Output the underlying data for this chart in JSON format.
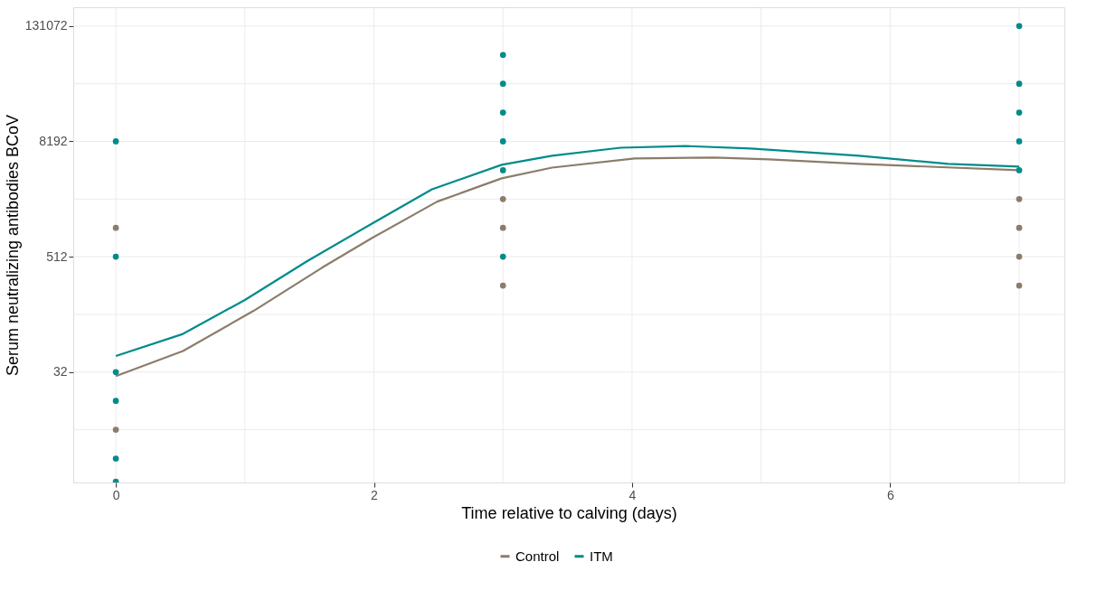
{
  "chart_data": {
    "type": "line",
    "xlabel": "Time relative to calving (days)",
    "ylabel": "Serum neutralizing antibodies BCoV",
    "log": true,
    "grid": true,
    "legend": "bottom",
    "marker": "none",
    "line_style": "solid",
    "xlim": [
      -0.33,
      7.35
    ],
    "xticks": [
      0,
      {
        "value": 1,
        "label": null
      },
      2,
      {
        "value": 3,
        "label": null
      },
      4,
      {
        "value": 5,
        "label": null
      },
      6,
      {
        "value": 7,
        "label": null
      }
    ],
    "ylim": [
      2.25,
      206000
    ],
    "yticks": [
      {
        "value": 8,
        "label": null
      },
      32,
      {
        "value": 128,
        "label": null
      },
      512,
      {
        "value": 2048,
        "label": null
      },
      8192,
      {
        "value": 32768,
        "label": null
      },
      131072
    ],
    "series": [
      {
        "name": "Control",
        "color": "#8b7d6b",
        "x": [
          0,
          0.52,
          1.07,
          1.6,
          1.99,
          2.49,
          2.99,
          3.38,
          4.02,
          4.64,
          5.06,
          5.76,
          7.0
        ],
        "values": [
          29,
          53,
          140,
          395,
          809,
          1925,
          3370,
          4360,
          5440,
          5560,
          5310,
          4770,
          4096
        ]
      },
      {
        "name": "ITM",
        "color": "#008b8b",
        "x": [
          0,
          0.52,
          1.0,
          1.48,
          2.0,
          2.45,
          2.99,
          3.38,
          3.91,
          4.41,
          4.92,
          5.76,
          6.45,
          7.0
        ],
        "values": [
          47,
          80,
          181,
          458,
          1167,
          2590,
          4670,
          5790,
          7030,
          7330,
          6890,
          5790,
          4770,
          4470
        ]
      },
      {
        "type": "scatter",
        "marker": "circle",
        "color": "#8b7d6b",
        "x": [
          0,
          0,
          3,
          3,
          3,
          7,
          7,
          7,
          7
        ],
        "values": [
          1024,
          8,
          2048,
          1024,
          256,
          2048,
          1024,
          512,
          256
        ]
      },
      {
        "type": "scatter",
        "marker": "circle",
        "color": "#008b8b",
        "x": [
          0,
          0,
          0,
          0,
          0,
          0,
          3,
          3,
          3,
          3,
          3,
          3,
          7,
          7,
          7,
          7,
          7
        ],
        "values": [
          8192,
          512,
          32,
          16,
          4,
          2.3,
          65536,
          32768,
          16384,
          8192,
          4096,
          512,
          131072,
          32768,
          16384,
          8192,
          4096
        ]
      }
    ]
  }
}
